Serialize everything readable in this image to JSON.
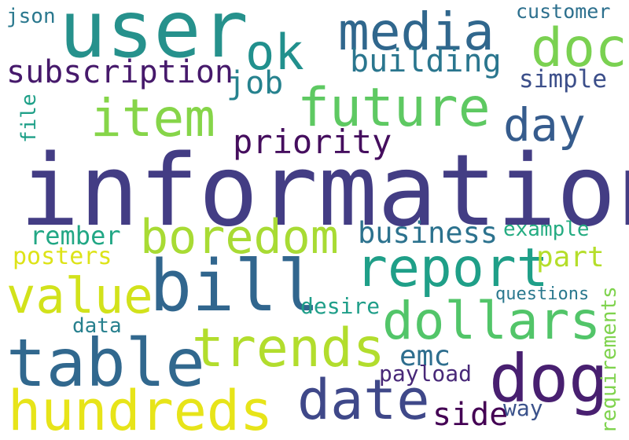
{
  "words": {
    "information": "information",
    "user": "user",
    "bill": "bill",
    "table": "table",
    "dog": "dog",
    "trends": "trends",
    "hundreds": "hundreds",
    "date": "date",
    "report": "report",
    "dollars": "dollars",
    "future": "future",
    "media": "media",
    "doc": "doc",
    "item": "item",
    "value": "value",
    "boredom": "boredom",
    "ok": "ok",
    "day": "day",
    "priority": "priority",
    "subscription": "subscription",
    "building": "building",
    "job": "job",
    "business": "business",
    "part": "part",
    "side": "side",
    "emc": "emc",
    "rember": "rember",
    "simple": "simple",
    "posters": "posters",
    "payload": "payload",
    "desire": "desire",
    "customer": "customer",
    "json": "json",
    "example": "example",
    "file": "file",
    "data": "data",
    "way": "way",
    "questions": "questions",
    "requirements": "requirements"
  },
  "colors": {
    "background": "#ffffff",
    "palette": "viridis"
  }
}
